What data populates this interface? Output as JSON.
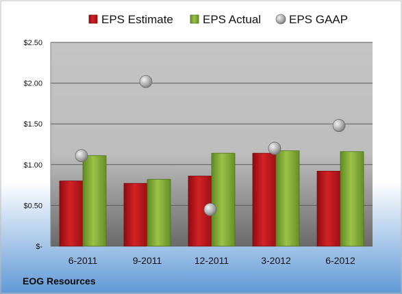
{
  "chart_data": {
    "type": "bar",
    "categories": [
      "6-2011",
      "9-2011",
      "12-2011",
      "3-2012",
      "6-2012"
    ],
    "series": [
      {
        "name": "EPS Estimate",
        "kind": "bar",
        "color": "#c8181c",
        "values": [
          0.8,
          0.77,
          0.86,
          1.14,
          0.92
        ]
      },
      {
        "name": "EPS Actual",
        "kind": "bar",
        "color": "#8ab33a",
        "values": [
          1.11,
          0.82,
          1.14,
          1.17,
          1.16
        ]
      },
      {
        "name": "EPS GAAP",
        "kind": "scatter",
        "color": "#a8a8a8",
        "values": [
          1.11,
          2.02,
          0.45,
          1.2,
          1.48
        ]
      }
    ],
    "ylim": [
      0,
      2.5
    ],
    "yticks": [
      0,
      0.5,
      1.0,
      1.5,
      2.0,
      2.5
    ],
    "ytick_labels": [
      "$-",
      "$0.50",
      "$1.00",
      "$1.50",
      "$2.00",
      "$2.50"
    ],
    "grid": true,
    "legend_position": "top",
    "footer_label": "EOG Resources",
    "colors": {
      "background_top": "#ffffff",
      "background_bottom": "#5f98d6",
      "plot_bg_top": "#c4c4c4",
      "plot_bg_bottom": "#6a6a6a",
      "gridline": "#5a5a5a",
      "border": "#bcbcbc"
    }
  }
}
